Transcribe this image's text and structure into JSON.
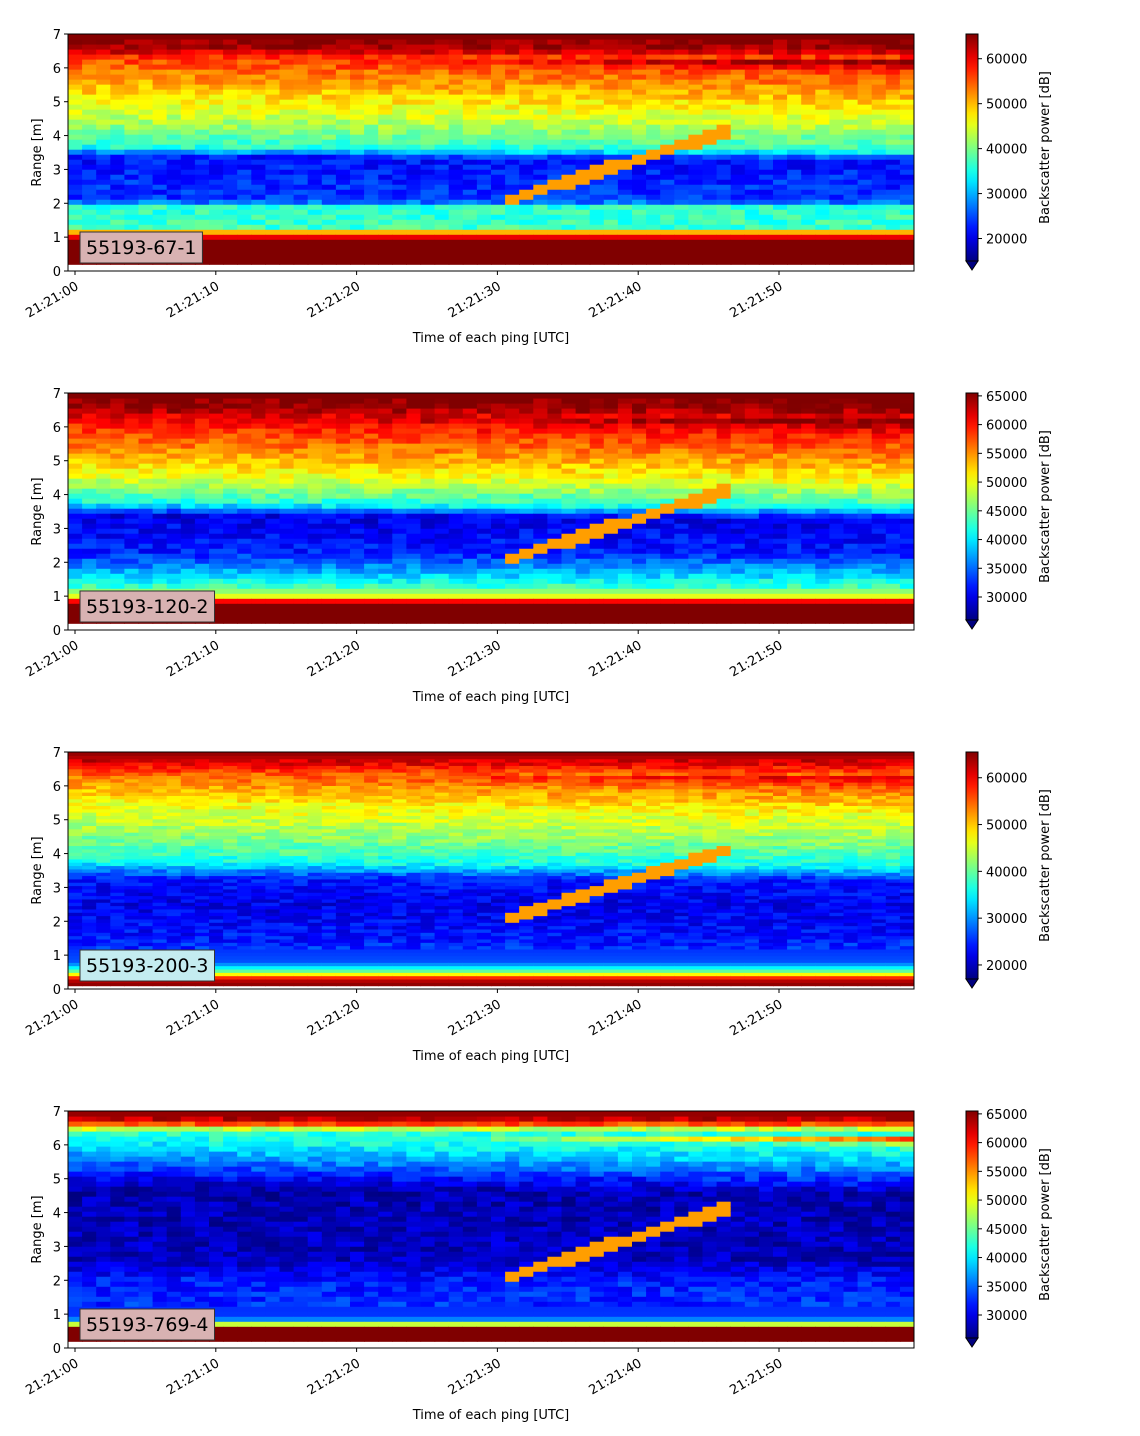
{
  "colors": {
    "colormap": "jet",
    "label_box_pink": "#d8b2b2",
    "label_box_cyan": "#c4ecf0"
  },
  "chart_data": [
    {
      "type": "heatmap",
      "label": "55193-67-1",
      "label_box_color": "#d8b2b2",
      "xlabel": "Time of each ping [UTC]",
      "ylabel": "Range [m]",
      "colorbar_label": "Backscatter power [dB]",
      "xtick_labels": [
        "21:21:00",
        "21:21:10",
        "21:21:20",
        "21:21:30",
        "21:21:40",
        "21:21:50"
      ],
      "xlim_seconds": [
        0,
        59.5
      ],
      "ylim": [
        0,
        7
      ],
      "yticks": [
        0,
        1,
        2,
        3,
        4,
        5,
        6,
        7
      ],
      "colorbar_range": [
        15000,
        65500
      ],
      "colorbar_ticks": [
        20000,
        30000,
        40000,
        50000,
        60000
      ],
      "colorbar_extend": "min",
      "data_range": [
        0.2,
        7
      ],
      "profile": [
        {
          "range": 0.2,
          "value": 65500
        },
        {
          "range": 0.9,
          "value": 65500
        },
        {
          "range": 1.1,
          "value": 56000
        },
        {
          "range": 1.3,
          "value": 37000
        },
        {
          "range": 1.9,
          "value": 36000
        },
        {
          "range": 2.1,
          "value": 24000
        },
        {
          "range": 3.4,
          "value": 22000
        },
        {
          "range": 3.7,
          "value": 36000
        },
        {
          "range": 4.5,
          "value": 43000
        },
        {
          "range": 5.5,
          "value": 50000
        },
        {
          "range": 6.3,
          "value": 56000
        },
        {
          "range": 6.6,
          "value": 64000
        },
        {
          "range": 7.0,
          "value": 65500
        }
      ]
    },
    {
      "type": "heatmap",
      "label": "55193-120-2",
      "label_box_color": "#d8b2b2",
      "xlabel": "Time of each ping [UTC]",
      "ylabel": "Range [m]",
      "colorbar_label": "Backscatter power [dB]",
      "xtick_labels": [
        "21:21:00",
        "21:21:10",
        "21:21:20",
        "21:21:30",
        "21:21:40",
        "21:21:50"
      ],
      "xlim_seconds": [
        0,
        59.5
      ],
      "ylim": [
        0,
        7
      ],
      "yticks": [
        0,
        1,
        2,
        3,
        4,
        5,
        6,
        7
      ],
      "colorbar_range": [
        26000,
        65500
      ],
      "colorbar_ticks": [
        30000,
        35000,
        40000,
        45000,
        50000,
        55000,
        60000,
        65000
      ],
      "colorbar_extend": "min",
      "data_range": [
        0.2,
        7
      ],
      "profile": [
        {
          "range": 0.2,
          "value": 65500
        },
        {
          "range": 0.8,
          "value": 65500
        },
        {
          "range": 1.0,
          "value": 50000
        },
        {
          "range": 1.3,
          "value": 43000
        },
        {
          "range": 1.9,
          "value": 36000
        },
        {
          "range": 2.3,
          "value": 32000
        },
        {
          "range": 3.4,
          "value": 30000
        },
        {
          "range": 3.8,
          "value": 42000
        },
        {
          "range": 4.6,
          "value": 50000
        },
        {
          "range": 5.5,
          "value": 56000
        },
        {
          "range": 6.2,
          "value": 60000
        },
        {
          "range": 6.6,
          "value": 65000
        },
        {
          "range": 7.0,
          "value": 65500
        }
      ]
    },
    {
      "type": "heatmap",
      "label": "55193-200-3",
      "label_box_color": "#c4ecf0",
      "xlabel": "Time of each ping [UTC]",
      "ylabel": "Range [m]",
      "colorbar_label": "Backscatter power [dB]",
      "xtick_labels": [
        "21:21:00",
        "21:21:10",
        "21:21:20",
        "21:21:30",
        "21:21:40",
        "21:21:50"
      ],
      "xlim_seconds": [
        0,
        59.5
      ],
      "ylim": [
        0,
        7
      ],
      "yticks": [
        0,
        1,
        2,
        3,
        4,
        5,
        6,
        7
      ],
      "colorbar_range": [
        17000,
        65500
      ],
      "colorbar_ticks": [
        20000,
        30000,
        40000,
        50000,
        60000
      ],
      "colorbar_extend": "min",
      "data_range": [
        0.1,
        7
      ],
      "profile": [
        {
          "range": 0.1,
          "value": 65500
        },
        {
          "range": 0.3,
          "value": 62000
        },
        {
          "range": 0.5,
          "value": 42000
        },
        {
          "range": 0.8,
          "value": 27000
        },
        {
          "range": 1.5,
          "value": 24000
        },
        {
          "range": 2.5,
          "value": 22000
        },
        {
          "range": 3.3,
          "value": 24000
        },
        {
          "range": 3.8,
          "value": 36000
        },
        {
          "range": 4.6,
          "value": 42000
        },
        {
          "range": 5.5,
          "value": 47000
        },
        {
          "range": 6.3,
          "value": 54000
        },
        {
          "range": 6.7,
          "value": 61000
        },
        {
          "range": 7.0,
          "value": 65000
        }
      ]
    },
    {
      "type": "heatmap",
      "label": "55193-769-4",
      "label_box_color": "#d8b2b2",
      "xlabel": "Time of each ping [UTC]",
      "ylabel": "Range [m]",
      "colorbar_label": "Backscatter power [dB]",
      "xtick_labels": [
        "21:21:00",
        "21:21:10",
        "21:21:20",
        "21:21:30",
        "21:21:40",
        "21:21:50"
      ],
      "xlim_seconds": [
        0,
        59.5
      ],
      "ylim": [
        0,
        7
      ],
      "yticks": [
        0,
        1,
        2,
        3,
        4,
        5,
        6,
        7
      ],
      "colorbar_range": [
        26000,
        65500
      ],
      "colorbar_ticks": [
        30000,
        35000,
        40000,
        45000,
        50000,
        55000,
        60000,
        65000
      ],
      "colorbar_extend": "min",
      "data_range": [
        0.2,
        7
      ],
      "profile": [
        {
          "range": 0.2,
          "value": 65500
        },
        {
          "range": 0.6,
          "value": 65500
        },
        {
          "range": 0.7,
          "value": 50000
        },
        {
          "range": 0.9,
          "value": 33000
        },
        {
          "range": 2.0,
          "value": 32000
        },
        {
          "range": 2.6,
          "value": 28500
        },
        {
          "range": 4.8,
          "value": 28000
        },
        {
          "range": 5.3,
          "value": 33000
        },
        {
          "range": 5.8,
          "value": 38000
        },
        {
          "range": 6.4,
          "value": 43000
        },
        {
          "range": 6.7,
          "value": 62000
        },
        {
          "range": 7.0,
          "value": 65500
        }
      ]
    }
  ]
}
